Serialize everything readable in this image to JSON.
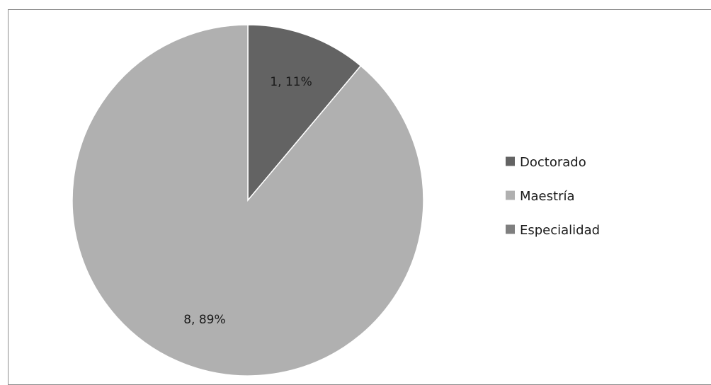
{
  "chart_data": {
    "type": "pie",
    "categories": [
      "Doctorado",
      "Maestría",
      "Especialidad"
    ],
    "values": [
      1,
      8,
      0
    ],
    "percentages": [
      "11%",
      "89%",
      "0%"
    ],
    "data_labels": [
      "1, 11%",
      "8, 89%",
      ""
    ],
    "colors": [
      "#636363",
      "#b0b0b0",
      "#7f7f7f"
    ],
    "legend_position": "right",
    "title": ""
  }
}
